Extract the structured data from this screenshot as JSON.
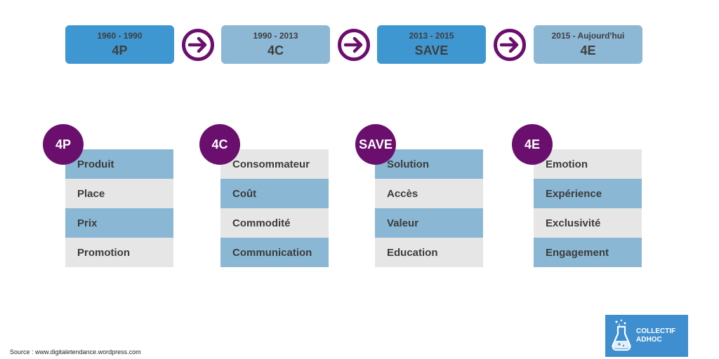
{
  "timeline": [
    {
      "period": "1960 - 1990",
      "label": "4P"
    },
    {
      "period": "1990 - 2013",
      "label": "4C"
    },
    {
      "period": "2013 - 2015",
      "label": "SAVE"
    },
    {
      "period": "2015 - Aujourd'hui",
      "label": "4E"
    }
  ],
  "models": [
    {
      "badge": "4P",
      "items": [
        "Produit",
        "Place",
        "Prix",
        "Promotion"
      ]
    },
    {
      "badge": "4C",
      "items": [
        "Consommateur",
        "Coût",
        "Commodité",
        "Communication"
      ]
    },
    {
      "badge": "SAVE",
      "items": [
        "Solution",
        "Accès",
        "Valeur",
        "Education"
      ]
    },
    {
      "badge": "4E",
      "items": [
        "Emotion",
        "Expérience",
        "Exclusivité",
        "Engagement"
      ]
    }
  ],
  "source": "Source : www.digitaletendance.wordpress.com",
  "logo": {
    "line1": "COLLECTIF",
    "line2": "ADHOC",
    "icon": "flask-icon"
  },
  "colors": {
    "timeline_dark": "#3f97d2",
    "timeline_light": "#8cb8d6",
    "row_blue": "#8ab8d4",
    "row_grey": "#e6e6e6",
    "accent_purple": "#6b0f6e",
    "logo_bg": "#3f8fd0"
  }
}
